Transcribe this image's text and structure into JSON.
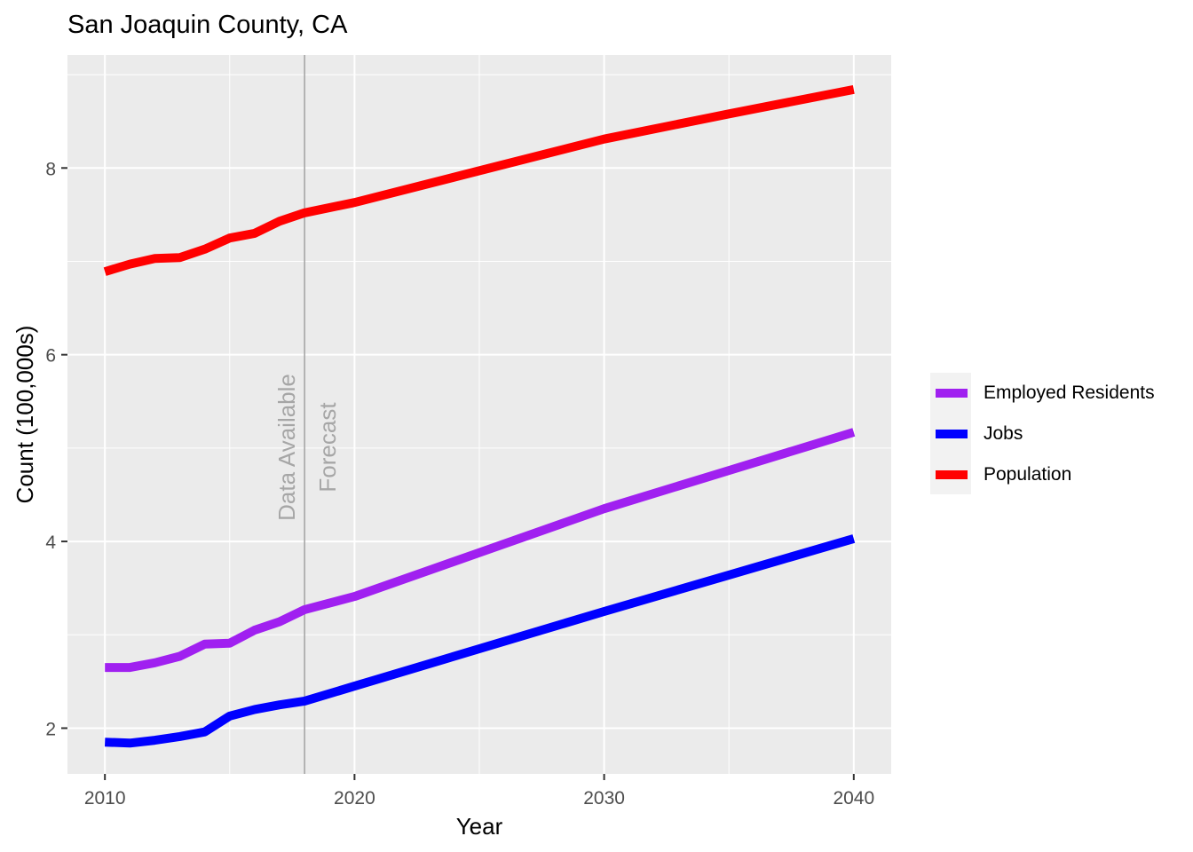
{
  "chart_data": {
    "type": "line",
    "title": "San Joaquin County, CA",
    "xlabel": "Year",
    "ylabel": "Count (100,000s)",
    "xlim": [
      2008.5,
      2041.5
    ],
    "ylim": [
      1.51,
      9.21
    ],
    "x_ticks": [
      2010,
      2020,
      2030,
      2040
    ],
    "x_minor": [
      2015,
      2025,
      2035
    ],
    "y_ticks": [
      2,
      4,
      6,
      8
    ],
    "y_minor": [
      3,
      5,
      7,
      9
    ],
    "grid": true,
    "legend_position": "right",
    "x": [
      2010,
      2011,
      2012,
      2013,
      2014,
      2015,
      2016,
      2017,
      2018,
      2020,
      2025,
      2030,
      2035,
      2040
    ],
    "series": [
      {
        "name": "Employed Residents",
        "color": "#A020F0",
        "values": [
          2.65,
          2.65,
          2.7,
          2.77,
          2.9,
          2.91,
          3.05,
          3.14,
          3.27,
          3.41,
          3.88,
          4.35,
          4.76,
          5.17
        ]
      },
      {
        "name": "Jobs",
        "color": "#0000FF",
        "values": [
          1.85,
          1.84,
          1.87,
          1.91,
          1.96,
          2.13,
          2.2,
          2.25,
          2.29,
          2.45,
          2.85,
          3.25,
          3.64,
          4.03
        ]
      },
      {
        "name": "Population",
        "color": "#FF0000",
        "values": [
          6.89,
          6.97,
          7.03,
          7.04,
          7.13,
          7.25,
          7.3,
          7.43,
          7.52,
          7.63,
          7.97,
          8.31,
          8.58,
          8.84
        ]
      }
    ],
    "annotations": [
      {
        "type": "vline",
        "x": 2018,
        "color": "#A6A6A6"
      },
      {
        "type": "text",
        "label": "Data Available",
        "x": 2018,
        "side": "left",
        "rotation": -90,
        "color": "#A6A6A6"
      },
      {
        "type": "text",
        "label": "Forecast",
        "x": 2018,
        "side": "right",
        "rotation": -90,
        "color": "#A6A6A6"
      }
    ]
  },
  "legend": {
    "items": [
      {
        "label": "Employed Residents",
        "color": "#A020F0"
      },
      {
        "label": "Jobs",
        "color": "#0000FF"
      },
      {
        "label": "Population",
        "color": "#FF0000"
      }
    ]
  },
  "colors": {
    "panel_bg": "#EBEBEB",
    "grid": "#FFFFFF",
    "tick_text": "#4D4D4D",
    "annotation": "#A6A6A6"
  }
}
